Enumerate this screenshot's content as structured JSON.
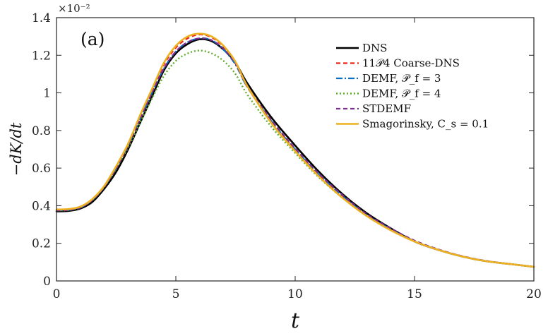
{
  "chart_data": {
    "type": "line",
    "panel_label": "(a)",
    "xlabel": "t",
    "ylabel": "−dK/dt",
    "y_scale_label": "×10⁻²",
    "xlim": [
      0,
      20
    ],
    "ylim": [
      0,
      1.4
    ],
    "xticks": [
      0,
      5,
      10,
      15,
      20
    ],
    "yticks": [
      0,
      0.2,
      0.4,
      0.6,
      0.8,
      1,
      1.2,
      1.4
    ],
    "xtick_labels": [
      "0",
      "5",
      "10",
      "15",
      "20"
    ],
    "ytick_labels": [
      "0",
      "0.2",
      "0.4",
      "0.6",
      "0.8",
      "1",
      "1.2",
      "1.4"
    ],
    "grid": false,
    "legend_position": "top-right",
    "x": [
      0,
      0.5,
      1,
      1.5,
      2,
      2.5,
      3,
      3.5,
      4,
      4.5,
      5,
      5.5,
      6,
      6.5,
      7,
      7.5,
      8,
      9,
      10,
      11,
      12,
      13,
      14,
      15,
      16,
      17,
      18,
      19,
      20
    ],
    "series": [
      {
        "name": "DNS",
        "color": "#000000",
        "dash": "solid",
        "width": 2.6,
        "values": [
          0.37,
          0.372,
          0.385,
          0.42,
          0.49,
          0.58,
          0.7,
          0.84,
          0.98,
          1.12,
          1.21,
          1.26,
          1.285,
          1.275,
          1.23,
          1.16,
          1.05,
          0.87,
          0.72,
          0.58,
          0.46,
          0.36,
          0.28,
          0.21,
          0.165,
          0.13,
          0.105,
          0.09,
          0.075
        ]
      },
      {
        "name": "11𝒫4 Coarse-DNS",
        "color": "#e8231c",
        "dash": "6,4",
        "width": 2.2,
        "values": [
          0.375,
          0.377,
          0.39,
          0.43,
          0.5,
          0.6,
          0.72,
          0.87,
          1.01,
          1.15,
          1.24,
          1.29,
          1.31,
          1.295,
          1.245,
          1.16,
          1.03,
          0.85,
          0.7,
          0.565,
          0.45,
          0.35,
          0.275,
          0.21,
          0.165,
          0.13,
          0.105,
          0.09,
          0.075
        ]
      },
      {
        "name": "DEMF, 𝒫_f = 3",
        "color": "#0a6fc2",
        "dash": "9,3,2,3",
        "width": 2.2,
        "values": [
          0.375,
          0.377,
          0.39,
          0.43,
          0.5,
          0.6,
          0.72,
          0.86,
          1.0,
          1.13,
          1.22,
          1.27,
          1.29,
          1.28,
          1.23,
          1.15,
          1.03,
          0.85,
          0.7,
          0.565,
          0.45,
          0.35,
          0.275,
          0.21,
          0.165,
          0.13,
          0.105,
          0.09,
          0.075
        ]
      },
      {
        "name": "DEMF, 𝒫_f = 4",
        "color": "#5fae2e",
        "dash": "2,3",
        "width": 2.4,
        "values": [
          0.375,
          0.377,
          0.39,
          0.43,
          0.5,
          0.6,
          0.71,
          0.84,
          0.97,
          1.09,
          1.17,
          1.21,
          1.225,
          1.21,
          1.17,
          1.1,
          0.99,
          0.82,
          0.68,
          0.55,
          0.44,
          0.345,
          0.27,
          0.21,
          0.165,
          0.13,
          0.105,
          0.09,
          0.075
        ]
      },
      {
        "name": "STDEMF",
        "color": "#7e2f8e",
        "dash": "6,4",
        "width": 2.2,
        "values": [
          0.375,
          0.377,
          0.39,
          0.43,
          0.5,
          0.6,
          0.72,
          0.86,
          1.0,
          1.13,
          1.22,
          1.27,
          1.29,
          1.28,
          1.235,
          1.155,
          1.035,
          0.855,
          0.705,
          0.57,
          0.455,
          0.355,
          0.28,
          0.215,
          0.168,
          0.132,
          0.107,
          0.09,
          0.075
        ]
      },
      {
        "name": "Smagorinsky, C_s = 0.1",
        "color": "#edb120",
        "dash": "solid",
        "width": 2.6,
        "values": [
          0.38,
          0.382,
          0.395,
          0.435,
          0.505,
          0.61,
          0.73,
          0.88,
          1.02,
          1.16,
          1.25,
          1.3,
          1.315,
          1.3,
          1.25,
          1.165,
          1.035,
          0.84,
          0.69,
          0.555,
          0.44,
          0.345,
          0.27,
          0.21,
          0.165,
          0.13,
          0.105,
          0.09,
          0.075
        ]
      }
    ]
  }
}
